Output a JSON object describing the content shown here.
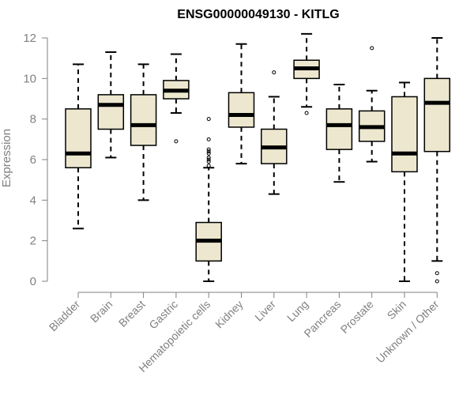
{
  "chart_data": {
    "type": "box",
    "title": "ENSG00000049130 - KITLG",
    "xlabel": "",
    "ylabel": "Expression",
    "ylim": [
      0,
      12.4
    ],
    "yticks": [
      0,
      2,
      4,
      6,
      8,
      10,
      12
    ],
    "grid": false,
    "legend": "none",
    "categories": [
      "Bladder",
      "Brain",
      "Breast",
      "Gastric",
      "Hematopoietic cells",
      "Kidney",
      "Liver",
      "Lung",
      "Pancreas",
      "Prostate",
      "Skin",
      "Unknown / Other"
    ],
    "boxes": [
      {
        "category": "Bladder",
        "whisker_low": 2.6,
        "q1": 5.6,
        "median": 6.3,
        "q3": 8.5,
        "whisker_high": 10.7,
        "outliers": []
      },
      {
        "category": "Brain",
        "whisker_low": 6.1,
        "q1": 7.5,
        "median": 8.7,
        "q3": 9.2,
        "whisker_high": 11.3,
        "outliers": []
      },
      {
        "category": "Breast",
        "whisker_low": 4.0,
        "q1": 6.7,
        "median": 7.7,
        "q3": 9.2,
        "whisker_high": 10.7,
        "outliers": []
      },
      {
        "category": "Gastric",
        "whisker_low": 8.3,
        "q1": 9.0,
        "median": 9.4,
        "q3": 9.9,
        "whisker_high": 11.2,
        "outliers": [
          6.9
        ]
      },
      {
        "category": "Hematopoietic cells",
        "whisker_low": 0.0,
        "q1": 1.0,
        "median": 2.0,
        "q3": 2.9,
        "whisker_high": 5.6,
        "outliers": [
          5.7,
          5.9,
          6.0,
          6.1,
          6.3,
          6.4,
          6.5,
          7.0,
          8.0
        ]
      },
      {
        "category": "Kidney",
        "whisker_low": 5.8,
        "q1": 7.6,
        "median": 8.2,
        "q3": 9.3,
        "whisker_high": 11.7,
        "outliers": []
      },
      {
        "category": "Liver",
        "whisker_low": 4.3,
        "q1": 5.8,
        "median": 6.6,
        "q3": 7.5,
        "whisker_high": 9.1,
        "outliers": [
          10.3
        ]
      },
      {
        "category": "Lung",
        "whisker_low": 8.6,
        "q1": 10.0,
        "median": 10.5,
        "q3": 10.9,
        "whisker_high": 12.2,
        "outliers": [
          8.3
        ]
      },
      {
        "category": "Pancreas",
        "whisker_low": 4.9,
        "q1": 6.5,
        "median": 7.7,
        "q3": 8.5,
        "whisker_high": 9.7,
        "outliers": []
      },
      {
        "category": "Prostate",
        "whisker_low": 5.9,
        "q1": 6.9,
        "median": 7.6,
        "q3": 8.4,
        "whisker_high": 9.4,
        "outliers": [
          11.5
        ]
      },
      {
        "category": "Skin",
        "whisker_low": 0.0,
        "q1": 5.4,
        "median": 6.3,
        "q3": 9.1,
        "whisker_high": 9.8,
        "outliers": []
      },
      {
        "category": "Unknown / Other",
        "whisker_low": 1.0,
        "q1": 6.4,
        "median": 8.8,
        "q3": 10.0,
        "whisker_high": 12.0,
        "outliers": [
          0.4,
          0.0
        ]
      }
    ],
    "colors": {
      "box_fill": "#ede7cf",
      "box_stroke": "#000000",
      "median": "#000000",
      "axis": "#808080",
      "tick_label": "#808080",
      "title": "#000000"
    }
  }
}
